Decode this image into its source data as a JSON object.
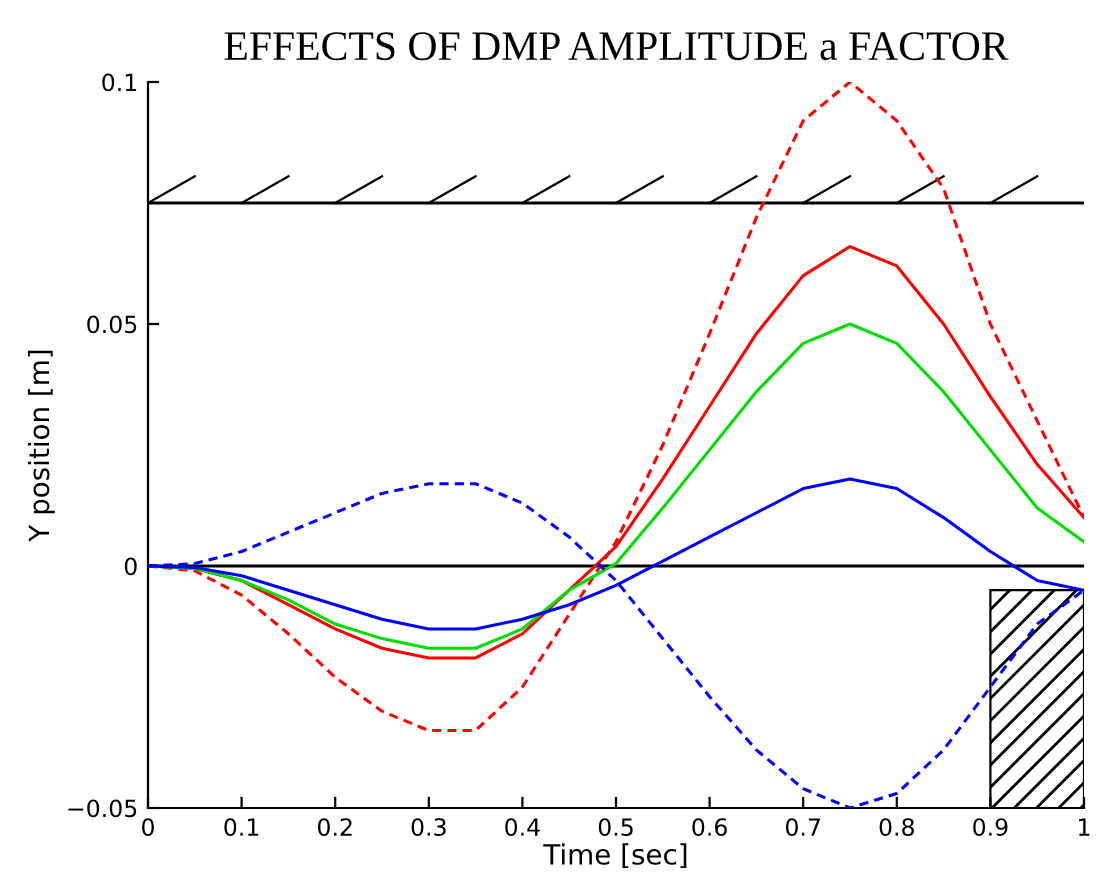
{
  "chart_data": {
    "type": "line",
    "title": "EFFECTS OF DMP AMPLITUDE a FACTOR",
    "xlabel": "Time [sec]",
    "ylabel": "Y position [m]",
    "x": [
      0,
      0.05,
      0.1,
      0.15,
      0.2,
      0.25,
      0.3,
      0.35,
      0.4,
      0.45,
      0.5,
      0.55,
      0.6,
      0.65,
      0.7,
      0.75,
      0.8,
      0.85,
      0.9,
      0.95,
      1
    ],
    "series": [
      {
        "color": "#ff0000",
        "line_style": "dashed",
        "values": [
          0,
          -0.001,
          -0.006,
          -0.014,
          -0.023,
          -0.03,
          -0.034,
          -0.034,
          -0.025,
          -0.01,
          0.005,
          0.025,
          0.048,
          0.072,
          0.092,
          0.1,
          0.092,
          0.078,
          0.05,
          0.03,
          0.01
        ]
      },
      {
        "color": "#ff0000",
        "line_style": "solid",
        "values": [
          0,
          -0.0005,
          -0.003,
          -0.008,
          -0.013,
          -0.017,
          -0.019,
          -0.019,
          -0.014,
          -0.005,
          0.004,
          0.018,
          0.033,
          0.048,
          0.06,
          0.066,
          0.062,
          0.05,
          0.035,
          0.021,
          0.01
        ]
      },
      {
        "color": "#00dd00",
        "line_style": "solid",
        "values": [
          0,
          -0.0005,
          -0.003,
          -0.007,
          -0.012,
          -0.015,
          -0.017,
          -0.017,
          -0.013,
          -0.005,
          0.0005,
          0.012,
          0.024,
          0.036,
          0.046,
          0.05,
          0.046,
          0.036,
          0.024,
          0.012,
          0.005
        ]
      },
      {
        "color": "#0000ff",
        "line_style": "solid",
        "values": [
          0,
          -0.0003,
          -0.002,
          -0.005,
          -0.008,
          -0.011,
          -0.013,
          -0.013,
          -0.011,
          -0.008,
          -0.004,
          0.001,
          0.006,
          0.011,
          0.016,
          0.018,
          0.016,
          0.01,
          0.003,
          -0.003,
          -0.005
        ]
      },
      {
        "color": "#0000ff",
        "line_style": "dashed",
        "values": [
          0,
          0.0005,
          0.003,
          0.007,
          0.011,
          0.015,
          0.017,
          0.017,
          0.013,
          0.006,
          -0.003,
          -0.015,
          -0.027,
          -0.038,
          -0.046,
          -0.05,
          -0.047,
          -0.038,
          -0.025,
          -0.012,
          -0.005
        ]
      }
    ],
    "ref_lines": [
      {
        "axis": "y",
        "value": 0.075,
        "color": "#000000"
      },
      {
        "axis": "y",
        "value": 0,
        "color": "#000000"
      }
    ],
    "xlim": [
      0,
      1
    ],
    "ylim": [
      -0.05,
      0.1
    ],
    "xticks": [
      0,
      0.1,
      0.2,
      0.3,
      0.4,
      0.5,
      0.6,
      0.7,
      0.8,
      0.9,
      1
    ],
    "yticks": [
      {
        "value": -0.05,
        "label": "−0.05"
      },
      0,
      0.05,
      0.1
    ],
    "grid": false,
    "legend": false
  }
}
